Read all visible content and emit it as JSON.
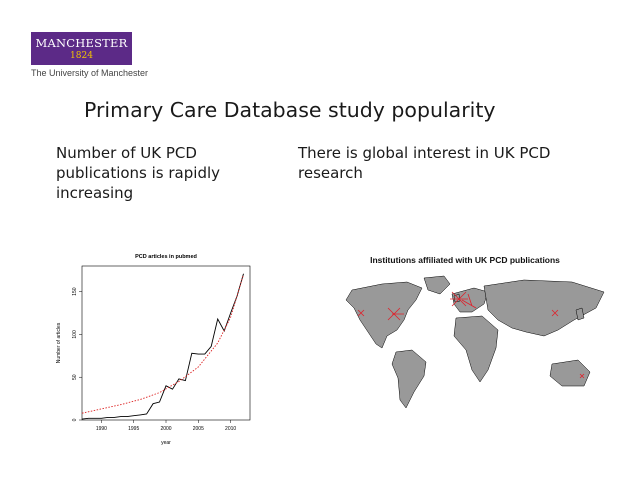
{
  "logo": {
    "name": "MANCHESTER",
    "year": "1824",
    "tagline": "The University of Manchester"
  },
  "slide_title": "Primary Care Database study popularity",
  "left_text": "Number of UK PCD publications is rapidly increasing",
  "right_text": "There is global interest in UK PCD research",
  "map": {
    "title": "Institutions affiliated with UK PCD publications",
    "land_color": "#999999",
    "marker_color": "#e0202a"
  },
  "chart_data": {
    "type": "line",
    "title": "PCD articles in pubmed",
    "xlabel": "year",
    "ylabel": "Number of articles",
    "xlim": [
      1987,
      2013
    ],
    "ylim": [
      0,
      180
    ],
    "xticks": [
      1990,
      1995,
      2000,
      2005,
      2010
    ],
    "yticks": [
      0,
      50,
      100,
      150
    ],
    "series": [
      {
        "style": "solid",
        "color": "#000000",
        "x": [
          1987,
          1988,
          1989,
          1990,
          1991,
          1992,
          1993,
          1994,
          1995,
          1996,
          1997,
          1998,
          1999,
          2000,
          2001,
          2002,
          2003,
          2004,
          2005,
          2006,
          2007,
          2008,
          2009,
          2010,
          2011,
          2012
        ],
        "y": [
          1,
          2,
          2,
          2,
          3,
          3,
          4,
          4,
          5,
          6,
          7,
          19,
          21,
          40,
          36,
          48,
          46,
          78,
          77,
          77,
          86,
          118,
          104,
          125,
          145,
          171
        ]
      },
      {
        "style": "dashed",
        "color": "#dd2222",
        "x": [
          1987,
          1990,
          1993,
          1996,
          1999,
          2002,
          2005,
          2008,
          2010,
          2012
        ],
        "y": [
          8,
          13,
          18,
          24,
          32,
          45,
          62,
          90,
          120,
          170
        ]
      }
    ]
  }
}
